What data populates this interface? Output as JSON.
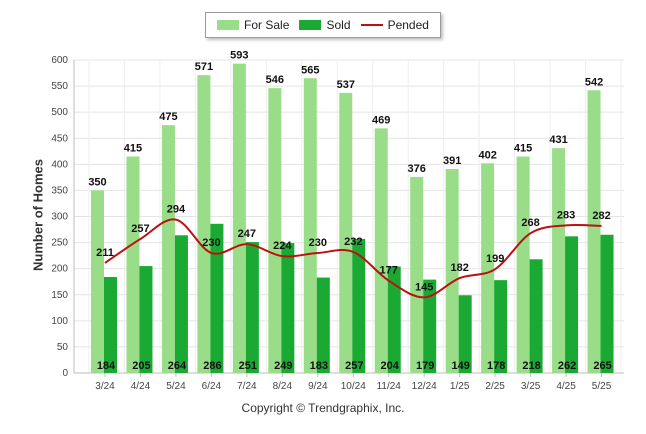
{
  "chart_data": {
    "type": "bar",
    "categories": [
      "3/24",
      "4/24",
      "5/24",
      "6/24",
      "7/24",
      "8/24",
      "9/24",
      "10/24",
      "11/24",
      "12/24",
      "1/25",
      "2/25",
      "3/25",
      "4/25",
      "5/25"
    ],
    "series": [
      {
        "name": "For Sale",
        "type": "bar",
        "color": "#99dd88",
        "values": [
          350,
          415,
          475,
          571,
          593,
          546,
          565,
          537,
          469,
          376,
          391,
          402,
          415,
          431,
          542
        ]
      },
      {
        "name": "Sold",
        "type": "bar",
        "color": "#1aaa33",
        "values": [
          184,
          205,
          264,
          286,
          251,
          249,
          183,
          257,
          204,
          179,
          149,
          178,
          218,
          262,
          265
        ]
      },
      {
        "name": "Pended",
        "type": "line",
        "color": "#bb1111",
        "values": [
          211,
          257,
          294,
          230,
          247,
          224,
          230,
          232,
          177,
          145,
          182,
          199,
          268,
          283,
          282
        ]
      }
    ],
    "ylabel": "Number of Homes",
    "xlabel": "",
    "ylim": [
      0,
      600
    ],
    "yticks": [
      0,
      50,
      100,
      150,
      200,
      250,
      300,
      350,
      400,
      450,
      500,
      550,
      600
    ],
    "grid": true,
    "legend_position": "top-center"
  },
  "footer": {
    "copyright": "Copyright © Trendgraphix, Inc."
  }
}
